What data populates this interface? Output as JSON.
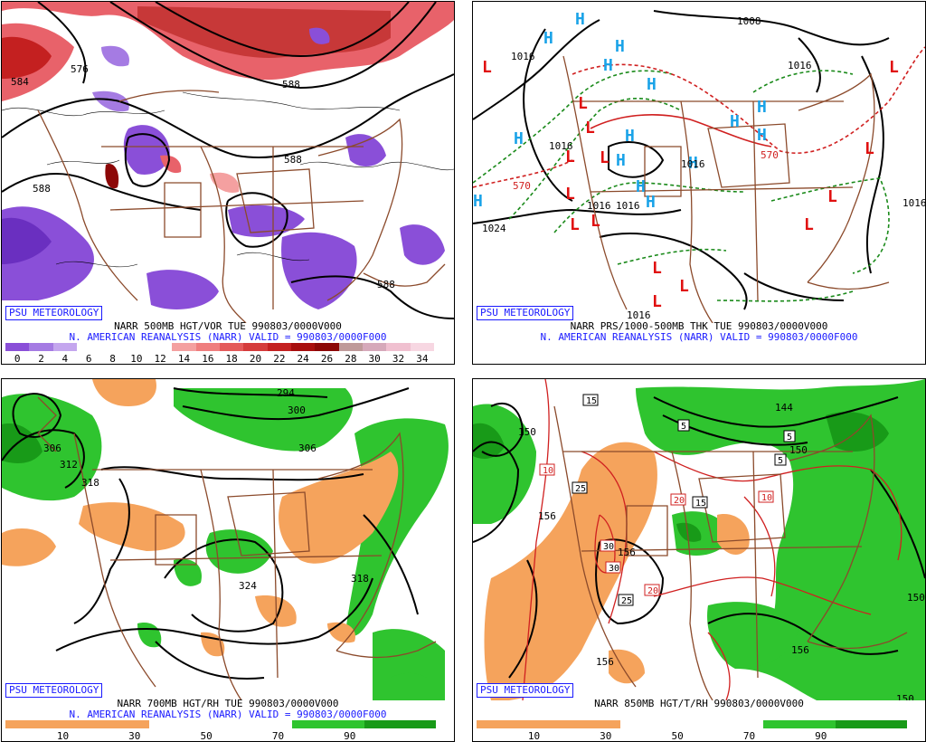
{
  "panels": [
    {
      "id": "p500",
      "badge": "PSU METEOROLOGY",
      "caption1": "NARR 500MB HGT/VOR TUE 990803/0000V000",
      "caption2": "N. AMERICAN REANALYSIS (NARR) VALID = 990803/0000F000",
      "contour_labels": [
        "584",
        "576",
        "588",
        "588",
        "588",
        "588"
      ],
      "colorbar": {
        "colors": [
          "#8a4fd8",
          "#a57be3",
          "#c4a6ee",
          "#ffffff",
          "#ffffff",
          "#ffffff",
          "#ffffff",
          "#f4a0a0",
          "#ef7e7e",
          "#e45a5a",
          "#d53c3c",
          "#c42020",
          "#a80e0e",
          "#8c0707",
          "#bf9a9a",
          "#d6a9ba",
          "#f0c0d0",
          "#f7d7e2"
        ],
        "labels": [
          "0",
          "2",
          "4",
          "6",
          "8",
          "10",
          "12",
          "14",
          "16",
          "18",
          "20",
          "22",
          "24",
          "26",
          "28",
          "30",
          "32",
          "34"
        ]
      }
    },
    {
      "id": "psfc",
      "badge": "PSU METEOROLOGY",
      "caption1": "NARR PRS/1000-500MB THK TUE 990803/0000V000",
      "caption2": "N. AMERICAN REANALYSIS (NARR) VALID = 990803/0000F000",
      "contour_labels": [
        "1008",
        "1016",
        "1016",
        "1016",
        "570",
        "1024",
        "1016",
        "1016",
        "1016",
        "1016",
        "1016",
        "570"
      ],
      "high_symbol": "H",
      "low_symbol": "L"
    },
    {
      "id": "p700",
      "badge": "PSU METEOROLOGY",
      "caption1": "NARR 700MB HGT/RH TUE 990803/0000V000",
      "caption2": "N. AMERICAN REANALYSIS (NARR) VALID = 990803/0000F000",
      "contour_labels": [
        "294",
        "300",
        "306",
        "306",
        "312",
        "318",
        "324",
        "318"
      ],
      "colorbar": {
        "colors": [
          "#f5a35c",
          "#f5a35c",
          "#f5a35c",
          "#f5a35c",
          "#ffffff",
          "#ffffff",
          "#ffffff",
          "#ffffff",
          "#2fc42f",
          "#2fc42f",
          "#189a18",
          "#189a18"
        ],
        "labels": [
          "10",
          "30",
          "50",
          "70",
          "90"
        ]
      }
    },
    {
      "id": "p850",
      "badge": "PSU METEOROLOGY",
      "caption1": "NARR 850MB HGT/T/RH 990803/0000V000",
      "contour_labels": [
        "150",
        "156",
        "144",
        "150",
        "156",
        "156",
        "150",
        "156",
        "150"
      ],
      "temp_labels": [
        "15",
        "5",
        "5",
        "5",
        "25",
        "30",
        "30",
        "25",
        "10",
        "20",
        "15",
        "10",
        "20"
      ],
      "colorbar": {
        "colors": [
          "#f5a35c",
          "#f5a35c",
          "#f5a35c",
          "#f5a35c",
          "#ffffff",
          "#ffffff",
          "#ffffff",
          "#ffffff",
          "#2fc42f",
          "#2fc42f",
          "#189a18",
          "#189a18"
        ],
        "labels": [
          "10",
          "30",
          "50",
          "70",
          "90"
        ]
      }
    }
  ]
}
